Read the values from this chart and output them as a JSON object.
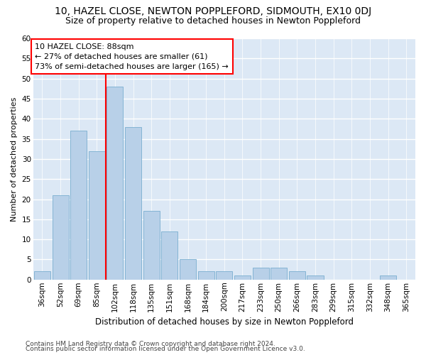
{
  "title1": "10, HAZEL CLOSE, NEWTON POPPLEFORD, SIDMOUTH, EX10 0DJ",
  "title2": "Size of property relative to detached houses in Newton Poppleford",
  "xlabel": "Distribution of detached houses by size in Newton Poppleford",
  "ylabel": "Number of detached properties",
  "bin_labels": [
    "36sqm",
    "52sqm",
    "69sqm",
    "85sqm",
    "102sqm",
    "118sqm",
    "135sqm",
    "151sqm",
    "168sqm",
    "184sqm",
    "200sqm",
    "217sqm",
    "233sqm",
    "250sqm",
    "266sqm",
    "283sqm",
    "299sqm",
    "315sqm",
    "332sqm",
    "348sqm",
    "365sqm"
  ],
  "bar_values": [
    2,
    21,
    37,
    32,
    48,
    38,
    17,
    12,
    5,
    2,
    2,
    1,
    3,
    3,
    2,
    1,
    0,
    0,
    0,
    1,
    0
  ],
  "bar_color": "#b8d0e8",
  "bar_edgecolor": "#7aaed0",
  "background_color": "#dce8f5",
  "grid_color": "#ffffff",
  "red_line_x": 3.5,
  "annotation_title": "10 HAZEL CLOSE: 88sqm",
  "annotation_line1": "← 27% of detached houses are smaller (61)",
  "annotation_line2": "73% of semi-detached houses are larger (165) →",
  "footer1": "Contains HM Land Registry data © Crown copyright and database right 2024.",
  "footer2": "Contains public sector information licensed under the Open Government Licence v3.0.",
  "ylim": [
    0,
    60
  ],
  "yticks": [
    0,
    5,
    10,
    15,
    20,
    25,
    30,
    35,
    40,
    45,
    50,
    55,
    60
  ],
  "title1_fontsize": 10,
  "title2_fontsize": 9,
  "xlabel_fontsize": 8.5,
  "ylabel_fontsize": 8,
  "tick_fontsize": 7.5,
  "annotation_fontsize": 8,
  "footer_fontsize": 6.5
}
